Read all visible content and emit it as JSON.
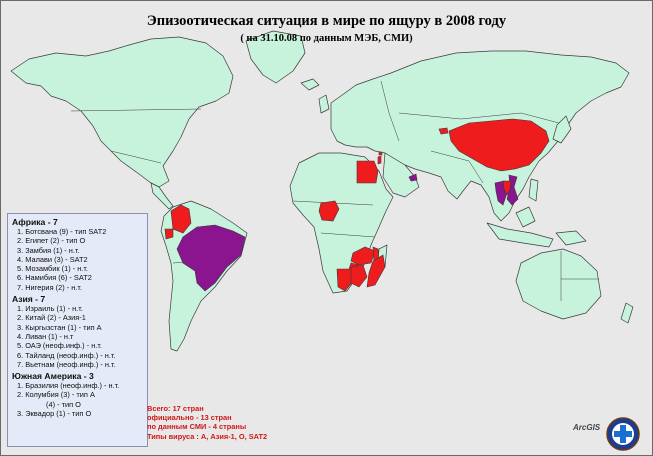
{
  "title": "Эпизоотическая ситуация в мире по ящуру в 2008 году",
  "subtitle": "( на 31.10.08 по данным МЭБ, СМИ)",
  "colors": {
    "background": "#e8e8e8",
    "land": "#c7f2dc",
    "border": "#3a3a3a",
    "official_outbreak": "#ee1c1c",
    "media_reported": "#8b158f",
    "legend_bg": "#e4eaf7",
    "totals_text": "#d01818"
  },
  "legend": {
    "africa": {
      "header": "Африка - 7",
      "items": [
        "1. Ботсвана (9) - тип SAT2",
        "2. Египет (2) - тип О",
        "3. Замбия (1) - н.т.",
        "4. Малави (3) - SAT2",
        "5. Мозамбик (1) - н.т.",
        "6. Намибия (6) - SAT2",
        "7. Нигерия (2) - н.т."
      ]
    },
    "asia": {
      "header": "Азия - 7",
      "items": [
        "1. Израиль (1) - н.т.",
        "2. Китай (2) - Азия-1",
        "3. Кыргызстан (1) - тип А",
        "4. Ливан (1) - н.т",
        "5. ОАЭ (неоф.инф.) - н.т.",
        "6. Тайланд (неоф.инф.) - н.т.",
        "7. Вьетнам (неоф.инф.) - н.т."
      ]
    },
    "south_america": {
      "header": "Южная Америка - 3",
      "items": [
        "1. Бразилия (неоф.инф.) - н.т.",
        "2. Колумбия (3) - тип А",
        "(4) - тип О",
        "3. Эквадор (1) - тип О"
      ]
    }
  },
  "totals": {
    "line1": "Всего: 17 стран",
    "line2": "официально - 13 стран",
    "line3": "по данным СМИ - 4 страны",
    "line4": "Типы вируса : А, Азия-1, О, SAT2"
  },
  "logo": {
    "text": "ArcGIS"
  }
}
